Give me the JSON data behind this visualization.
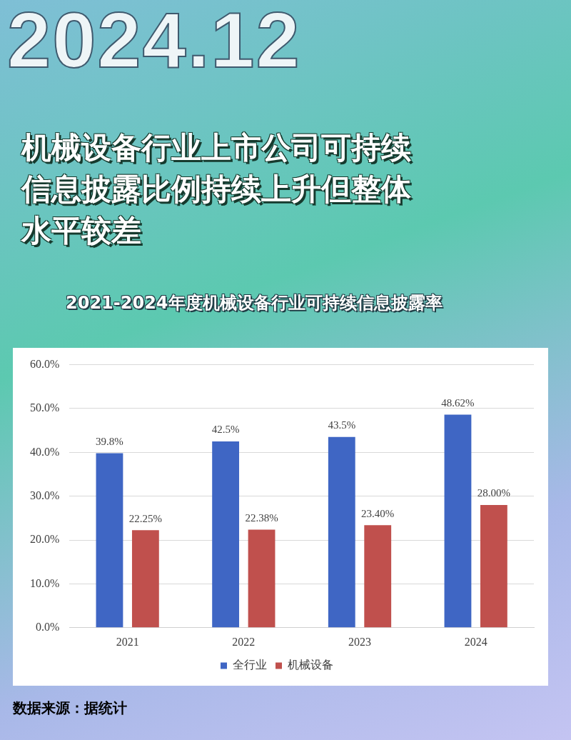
{
  "chart_data": {
    "type": "bar",
    "title": "机械设备行业上市公司可持续信息披露比例持续上升但整体水平较差",
    "subtitle": "2021-2024年度机械设备行业可持续信息披露率",
    "annotations": [
      "2024.12",
      "数据来源：据统计"
    ],
    "categories": [
      "2021",
      "2022",
      "2023",
      "2024"
    ],
    "series": [
      {
        "name": "全行业",
        "color": "#3f66c4",
        "values": [
          39.8,
          42.5,
          43.5,
          48.62
        ],
        "value_labels": [
          "39.8%",
          "42.5%",
          "43.5%",
          "48.62%"
        ]
      },
      {
        "name": "机械设备",
        "color": "#c0504d",
        "values": [
          22.25,
          22.38,
          23.4,
          28.0
        ],
        "value_labels": [
          "22.25%",
          "22.38%",
          "23.40%",
          "28.00%"
        ]
      }
    ],
    "ylim": [
      0,
      60
    ],
    "yticks": [
      {
        "value": 0,
        "label": "0.0%"
      },
      {
        "value": 10,
        "label": "10.0%"
      },
      {
        "value": 20,
        "label": "20.0%"
      },
      {
        "value": 30,
        "label": "30.0%"
      },
      {
        "value": 40,
        "label": "40.0%"
      },
      {
        "value": 50,
        "label": "50.0%"
      },
      {
        "value": 60,
        "label": "60.0%"
      }
    ],
    "grid": "y",
    "legend": "bottom"
  }
}
